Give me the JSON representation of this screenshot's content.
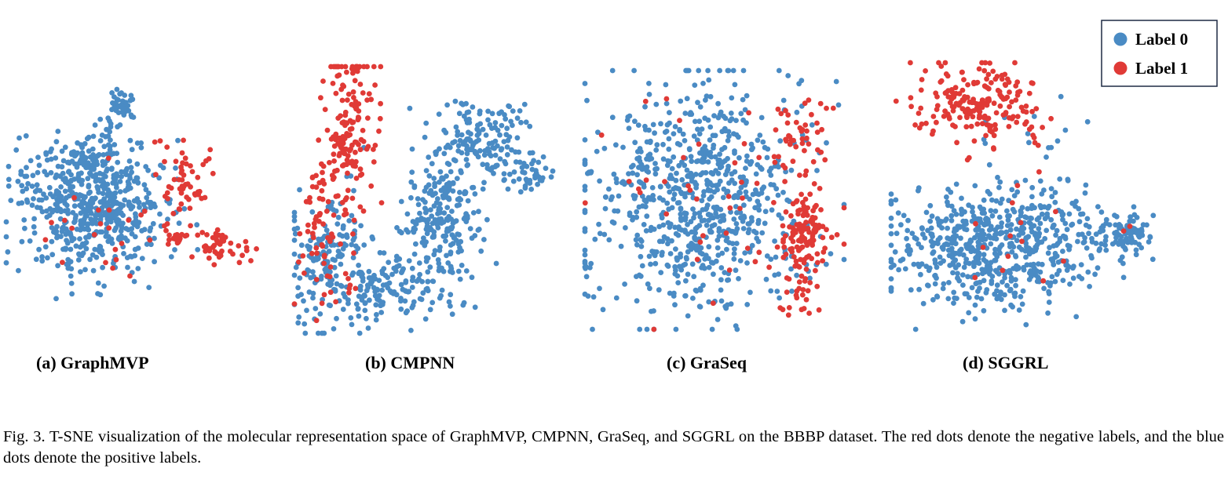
{
  "colors": {
    "label0": "#4a8bc4",
    "label1": "#e03a36",
    "legend_border": "#1f2a44"
  },
  "legend": {
    "items": [
      "Label 0",
      "Label 1"
    ]
  },
  "caption": "Fig. 3.  T-SNE visualization of the molecular representation space of GraphMVP, CMPNN, GraSeq, and SGGRL on the BBBP dataset. The red dots denote the negative labels, and the blue dots denote the positive labels.",
  "chart_data": [
    {
      "type": "scatter",
      "title": "(a)  GraphMVP",
      "series": [
        {
          "name": "Label 0",
          "clusters": [
            {
              "x": 35,
              "y": 52,
              "sx": 14,
              "sy": 13,
              "n": 560
            },
            {
              "x": 45,
              "y": 12,
              "sx": 3,
              "sy": 4,
              "n": 40
            },
            {
              "x": 10,
              "y": 44,
              "sx": 4,
              "sy": 4,
              "n": 25
            },
            {
              "x": 30,
              "y": 30,
              "sx": 6,
              "sy": 5,
              "n": 40
            }
          ]
        },
        {
          "name": "Label 1",
          "clusters": [
            {
              "x": 72,
              "y": 43,
              "sx": 6,
              "sy": 7,
              "n": 55
            },
            {
              "x": 85,
              "y": 67,
              "sx": 5,
              "sy": 3,
              "n": 45
            },
            {
              "x": 68,
              "y": 64,
              "sx": 2,
              "sy": 1.5,
              "n": 15
            },
            {
              "x": 38,
              "y": 58,
              "sx": 14,
              "sy": 14,
              "n": 25
            }
          ]
        }
      ]
    },
    {
      "type": "scatter",
      "title": "(b)  CMPNN",
      "series": [
        {
          "name": "Label 0",
          "clusters": [
            {
              "x": 12,
              "y": 74,
              "sx": 8,
              "sy": 15,
              "n": 170
            },
            {
              "x": 37,
              "y": 82,
              "sx": 12,
              "sy": 6,
              "n": 140
            },
            {
              "x": 55,
              "y": 56,
              "sx": 7,
              "sy": 13,
              "n": 220
            },
            {
              "x": 70,
              "y": 26,
              "sx": 10,
              "sy": 8,
              "n": 140
            },
            {
              "x": 86,
              "y": 40,
              "sx": 5,
              "sy": 4,
              "n": 40
            }
          ]
        },
        {
          "name": "Label 1",
          "clusters": [
            {
              "x": 20,
              "y": 23,
              "sx": 5,
              "sy": 17,
              "n": 170
            },
            {
              "x": 9,
              "y": 62,
              "sx": 4,
              "sy": 12,
              "n": 50
            },
            {
              "x": 15,
              "y": 85,
              "sx": 5,
              "sy": 5,
              "n": 10
            }
          ]
        }
      ]
    },
    {
      "type": "scatter",
      "title": "(c) GraSeq",
      "series": [
        {
          "name": "Label 0",
          "clusters": [
            {
              "x": 45,
              "y": 48,
              "sx": 20,
              "sy": 22,
              "n": 740
            },
            {
              "x": 3,
              "y": 40,
              "sx": 1,
              "sy": 1,
              "n": 5
            },
            {
              "x": 1,
              "y": 76,
              "sx": 1,
              "sy": 2,
              "n": 8
            }
          ]
        },
        {
          "name": "Label 1",
          "clusters": [
            {
              "x": 86,
              "y": 62,
              "sx": 5,
              "sy": 7,
              "n": 110
            },
            {
              "x": 82,
              "y": 28,
              "sx": 6,
              "sy": 9,
              "n": 50
            },
            {
              "x": 82,
              "y": 85,
              "sx": 4,
              "sy": 6,
              "n": 30
            },
            {
              "x": 50,
              "y": 55,
              "sx": 22,
              "sy": 22,
              "n": 40
            }
          ]
        }
      ]
    },
    {
      "type": "scatter",
      "title": "(d)  SGGRL",
      "series": [
        {
          "name": "Label 0",
          "clusters": [
            {
              "x": 40,
              "y": 68,
              "sx": 20,
              "sy": 11,
              "n": 620
            },
            {
              "x": 86,
              "y": 64,
              "sx": 5,
              "sy": 4,
              "n": 80
            },
            {
              "x": 50,
              "y": 24,
              "sx": 14,
              "sy": 6,
              "n": 15
            }
          ]
        },
        {
          "name": "Label 1",
          "clusters": [
            {
              "x": 33,
              "y": 16,
              "sx": 13,
              "sy": 8,
              "n": 200
            },
            {
              "x": 48,
              "y": 68,
              "sx": 15,
              "sy": 10,
              "n": 15
            }
          ]
        }
      ]
    }
  ]
}
